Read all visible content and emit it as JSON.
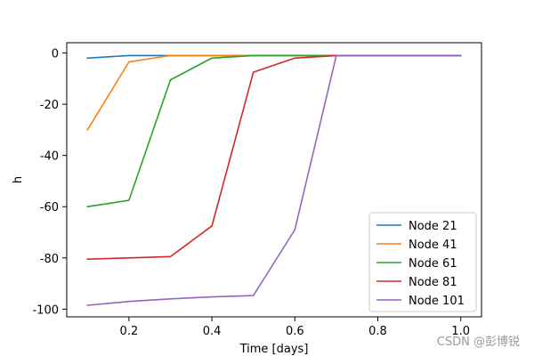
{
  "chart_data": {
    "type": "line",
    "title": "",
    "xlabel": "Time [days]",
    "ylabel": "h",
    "xlim": [
      0.05,
      1.05
    ],
    "ylim": [
      -103,
      4
    ],
    "xticks": [
      0.2,
      0.4,
      0.6,
      0.8,
      1.0
    ],
    "xtick_labels": [
      "0.2",
      "0.4",
      "0.6",
      "0.8",
      "1.0"
    ],
    "yticks": [
      0,
      -20,
      -40,
      -60,
      -80,
      -100
    ],
    "ytick_labels": [
      "0",
      "-20",
      "-40",
      "-60",
      "-80",
      "-100"
    ],
    "grid": false,
    "legend_position": "lower-right",
    "x": [
      0.1,
      0.2,
      0.3,
      0.4,
      0.5,
      0.6,
      0.7,
      0.8,
      0.9,
      1.0
    ],
    "series": [
      {
        "name": "Node 21",
        "color": "#1f77b4",
        "values": [
          -2.0,
          -1.0,
          -1.0,
          -1.0,
          -1.0,
          -1.0,
          -1.0,
          -1.0,
          -1.0,
          -1.0
        ]
      },
      {
        "name": "Node 41",
        "color": "#ff7f0e",
        "values": [
          -30.0,
          -3.5,
          -1.0,
          -1.0,
          -1.0,
          -1.0,
          -1.0,
          -1.0,
          -1.0,
          -1.0
        ]
      },
      {
        "name": "Node 61",
        "color": "#2ca02c",
        "values": [
          -60.0,
          -57.5,
          -10.5,
          -2.0,
          -1.0,
          -1.0,
          -1.0,
          -1.0,
          -1.0,
          -1.0
        ]
      },
      {
        "name": "Node 81",
        "color": "#d62728",
        "values": [
          -80.5,
          -80.0,
          -79.5,
          -67.5,
          -7.5,
          -2.0,
          -1.0,
          -1.0,
          -1.0,
          -1.0
        ]
      },
      {
        "name": "Node 101",
        "color": "#9467bd",
        "values": [
          -98.5,
          -97.0,
          -96.0,
          -95.2,
          -94.7,
          -69.0,
          -1.0,
          -1.0,
          -1.0,
          -1.0
        ]
      }
    ]
  },
  "watermark": "CSDN @彭博锐"
}
